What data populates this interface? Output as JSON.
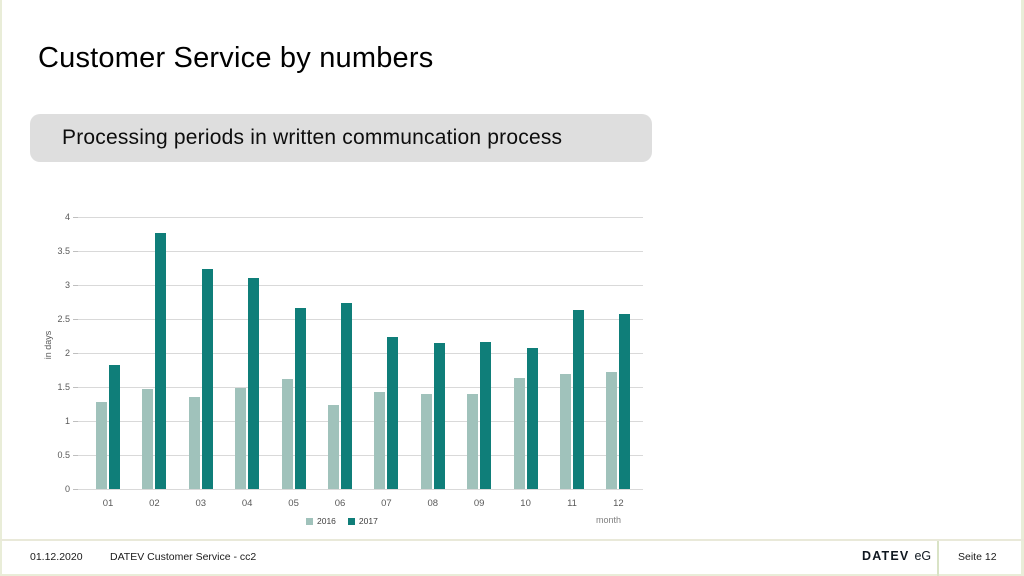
{
  "slide": {
    "title": "Customer Service by numbers",
    "subtitle": "Processing periods in written communcation process"
  },
  "chart_data": {
    "type": "bar",
    "title": "",
    "xlabel": "month",
    "ylabel": "in days",
    "ylim": [
      0,
      4
    ],
    "ytick_step": 0.5,
    "yticks": [
      "0",
      "0.5",
      "1",
      "1.5",
      "2",
      "2.5",
      "3",
      "3.5",
      "4"
    ],
    "grid": true,
    "legend_position": "bottom",
    "categories": [
      "01",
      "02",
      "03",
      "04",
      "05",
      "06",
      "07",
      "08",
      "09",
      "10",
      "11",
      "12"
    ],
    "series": [
      {
        "name": "2016",
        "color": "#a0c2bb",
        "values": [
          1.28,
          1.47,
          1.36,
          1.48,
          1.62,
          1.24,
          1.42,
          1.39,
          1.4,
          1.63,
          1.69,
          1.72
        ]
      },
      {
        "name": "2017",
        "color": "#0f7e79",
        "values": [
          1.82,
          3.77,
          3.23,
          3.11,
          2.66,
          2.73,
          2.24,
          2.15,
          2.16,
          2.07,
          2.63,
          2.58
        ]
      }
    ]
  },
  "footer": {
    "date": "01.12.2020",
    "doc_title": "DATEV Customer Service - cc2",
    "brand": "DATEV",
    "brand_suffix": "eG",
    "page": "Seite 12"
  }
}
